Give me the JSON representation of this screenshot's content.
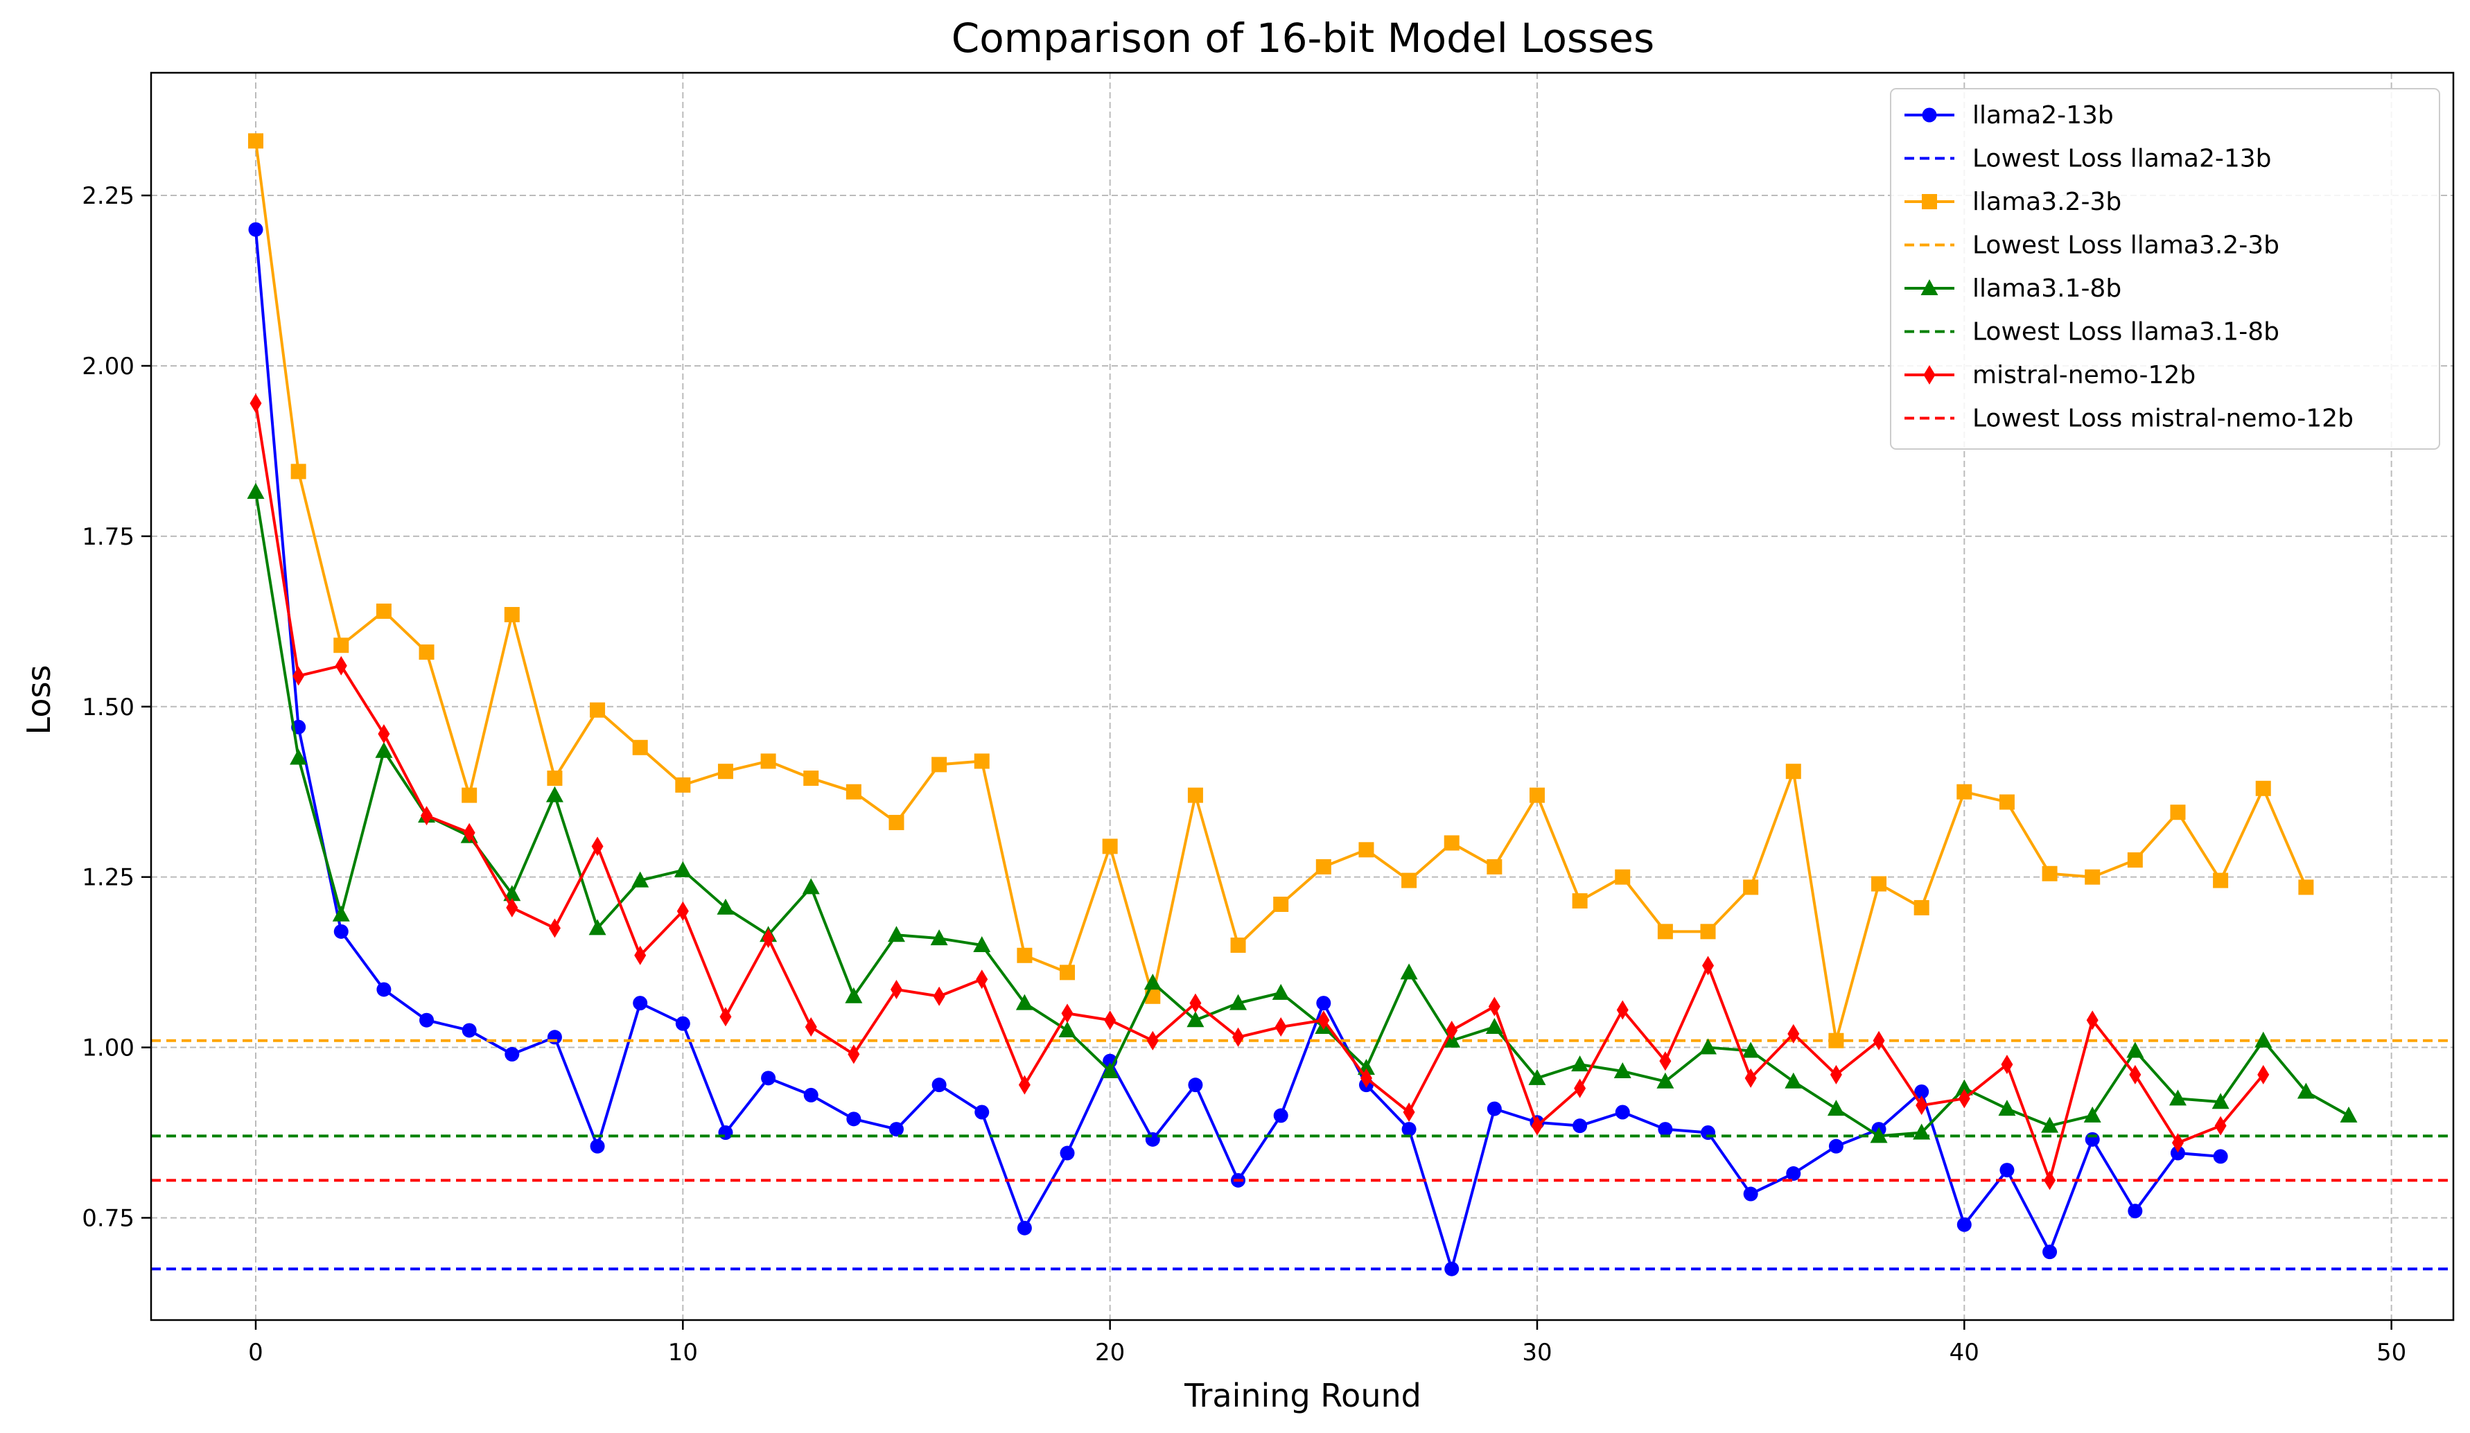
{
  "chart_data": {
    "type": "line",
    "title": "Comparison of 16-bit Model Losses",
    "xlabel": "Training Round",
    "ylabel": "Loss",
    "xlim": [
      -2.45,
      51.45
    ],
    "ylim": [
      0.6,
      2.43
    ],
    "xticks": [
      0,
      10,
      20,
      30,
      40,
      50
    ],
    "yticks": [
      0.75,
      1.0,
      1.25,
      1.5,
      1.75,
      2.0,
      2.25
    ],
    "ytick_labels": [
      "0.75",
      "1.00",
      "1.25",
      "1.50",
      "1.75",
      "2.00",
      "2.25"
    ],
    "grid": true,
    "legend_position": "top-right",
    "series": [
      {
        "name": "llama2-13b",
        "color": "#0000ff",
        "marker": "circle",
        "values": [
          2.2,
          1.47,
          1.17,
          1.085,
          1.04,
          1.025,
          0.99,
          1.015,
          0.855,
          1.065,
          1.035,
          0.875,
          0.955,
          0.93,
          0.895,
          0.88,
          0.945,
          0.905,
          0.735,
          0.845,
          0.98,
          0.865,
          0.945,
          0.805,
          0.9,
          1.065,
          0.945,
          0.88,
          0.675,
          0.91,
          0.89,
          0.885,
          0.905,
          0.88,
          0.875,
          0.785,
          0.815,
          0.855,
          0.88,
          0.935,
          0.74,
          0.82,
          0.7,
          0.865,
          0.76,
          0.845,
          0.84
        ]
      },
      {
        "name": "Lowest Loss llama2-13b",
        "color": "#0000ff",
        "dashed": true,
        "value": 0.675
      },
      {
        "name": "llama3.2-3b",
        "color": "#ffa500",
        "marker": "square",
        "values": [
          2.33,
          1.845,
          1.59,
          1.64,
          1.58,
          1.37,
          1.635,
          1.395,
          1.495,
          1.44,
          1.385,
          1.405,
          1.42,
          1.395,
          1.375,
          1.33,
          1.415,
          1.42,
          1.135,
          1.11,
          1.295,
          1.075,
          1.37,
          1.15,
          1.21,
          1.265,
          1.29,
          1.245,
          1.3,
          1.265,
          1.37,
          1.215,
          1.25,
          1.17,
          1.17,
          1.235,
          1.405,
          1.01,
          1.24,
          1.205,
          1.375,
          1.36,
          1.255,
          1.25,
          1.275,
          1.345,
          1.245,
          1.38,
          1.235
        ]
      },
      {
        "name": "Lowest Loss llama3.2-3b",
        "color": "#ffa500",
        "dashed": true,
        "value": 1.01
      },
      {
        "name": "llama3.1-8b",
        "color": "#008000",
        "marker": "triangle",
        "values": [
          1.815,
          1.425,
          1.195,
          1.435,
          1.34,
          1.31,
          1.225,
          1.37,
          1.175,
          1.245,
          1.26,
          1.205,
          1.165,
          1.235,
          1.075,
          1.165,
          1.16,
          1.15,
          1.065,
          1.025,
          0.965,
          1.095,
          1.04,
          1.065,
          1.08,
          1.03,
          0.97,
          1.11,
          1.01,
          1.03,
          0.955,
          0.975,
          0.965,
          0.95,
          1.0,
          0.995,
          0.95,
          0.91,
          0.87,
          0.875,
          0.94,
          0.91,
          0.885,
          0.9,
          0.995,
          0.925,
          0.92,
          1.01,
          0.935,
          0.9
        ]
      },
      {
        "name": "Lowest Loss llama3.1-8b",
        "color": "#008000",
        "dashed": true,
        "value": 0.87
      },
      {
        "name": "mistral-nemo-12b",
        "color": "#ff0000",
        "marker": "diamond",
        "values": [
          1.945,
          1.545,
          1.56,
          1.46,
          1.34,
          1.315,
          1.205,
          1.175,
          1.295,
          1.135,
          1.2,
          1.045,
          1.16,
          1.03,
          0.99,
          1.085,
          1.075,
          1.1,
          0.945,
          1.05,
          1.04,
          1.01,
          1.065,
          1.015,
          1.03,
          1.04,
          0.955,
          0.905,
          1.025,
          1.06,
          0.885,
          0.94,
          1.055,
          0.98,
          1.12,
          0.955,
          1.02,
          0.96,
          1.01,
          0.915,
          0.925,
          0.975,
          0.805,
          1.04,
          0.96,
          0.86,
          0.885,
          0.96
        ]
      },
      {
        "name": "Lowest Loss mistral-nemo-12b",
        "color": "#ff0000",
        "dashed": true,
        "value": 0.805
      }
    ]
  }
}
